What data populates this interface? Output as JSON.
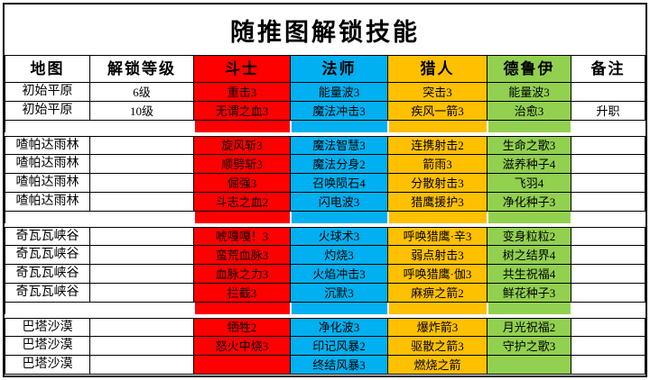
{
  "title": "随推图解锁技能",
  "table": {
    "columns": [
      {
        "label": "地图",
        "color": null
      },
      {
        "label": "解锁等级",
        "color": null
      },
      {
        "label": "斗士",
        "color": "#FF0000"
      },
      {
        "label": "法师",
        "color": "#00B0F0"
      },
      {
        "label": "猎人",
        "color": "#FFC000"
      },
      {
        "label": "德鲁伊",
        "color": "#92D050"
      },
      {
        "label": "备注",
        "color": null
      }
    ],
    "groups": [
      {
        "map": "初始平原",
        "rows": [
          [
            "初始平原",
            "6级",
            "重击3",
            "能量波3",
            "突击3",
            "能量波3",
            ""
          ],
          [
            "初始平原",
            "10级",
            "无谓之血3",
            "魔法冲击3",
            "疾风一箭3",
            "治愈3",
            "升职"
          ]
        ]
      },
      {
        "map": "喳帕达雨林",
        "rows": [
          [
            "喳帕达雨林",
            "",
            "旋风斩3",
            "魔法智慧3",
            "连携射击2",
            "生命之歌3",
            ""
          ],
          [
            "喳帕达雨林",
            "",
            "顺劈斩3",
            "魔法分身2",
            "箭雨3",
            "滋养种子4",
            ""
          ],
          [
            "喳帕达雨林",
            "",
            "倔强3",
            "召唤陨石4",
            "分散射击3",
            "飞羽4",
            ""
          ],
          [
            "喳帕达雨林",
            "",
            "斗志之血2",
            "闪电波3",
            "猎鹰援护3",
            "净化种子3",
            ""
          ]
        ]
      },
      {
        "map": "奇瓦瓦峡谷",
        "rows": [
          [
            "奇瓦瓦峡谷",
            "",
            "唬嘎嘎！3",
            "火球术3",
            "呼唤猎鹰·辛3",
            "变身粒粒2",
            ""
          ],
          [
            "奇瓦瓦峡谷",
            "",
            "蛮荒血脉3",
            "灼烧3",
            "弱点射击3",
            "树之结界4",
            ""
          ],
          [
            "奇瓦瓦峡谷",
            "",
            "血脉之力3",
            "火焰冲击3",
            "呼唤猎鹰·伽3",
            "共生祝福4",
            ""
          ],
          [
            "奇瓦瓦峡谷",
            "",
            "拦截3",
            "沉默3",
            "麻痹之箭2",
            "鲜花种子3",
            ""
          ]
        ]
      },
      {
        "map": "巴塔沙漠",
        "rows": [
          [
            "巴塔沙漠",
            "",
            "牺牲2",
            "净化波3",
            "爆炸箭3",
            "月光祝福2",
            ""
          ],
          [
            "巴塔沙漠",
            "",
            "怒火中烧3",
            "印记风暴2",
            "驱散之箭3",
            "守护之歌3",
            ""
          ],
          [
            "巴塔沙漠",
            "",
            "",
            "终结风暴3",
            "燃烧之箭",
            "",
            ""
          ]
        ]
      }
    ]
  },
  "colors": {
    "fighter": "#FF0000",
    "mage": "#00B0F0",
    "hunter": "#FFC000",
    "druid": "#92D050",
    "border": "#000000",
    "background": "#FFFFFF"
  }
}
